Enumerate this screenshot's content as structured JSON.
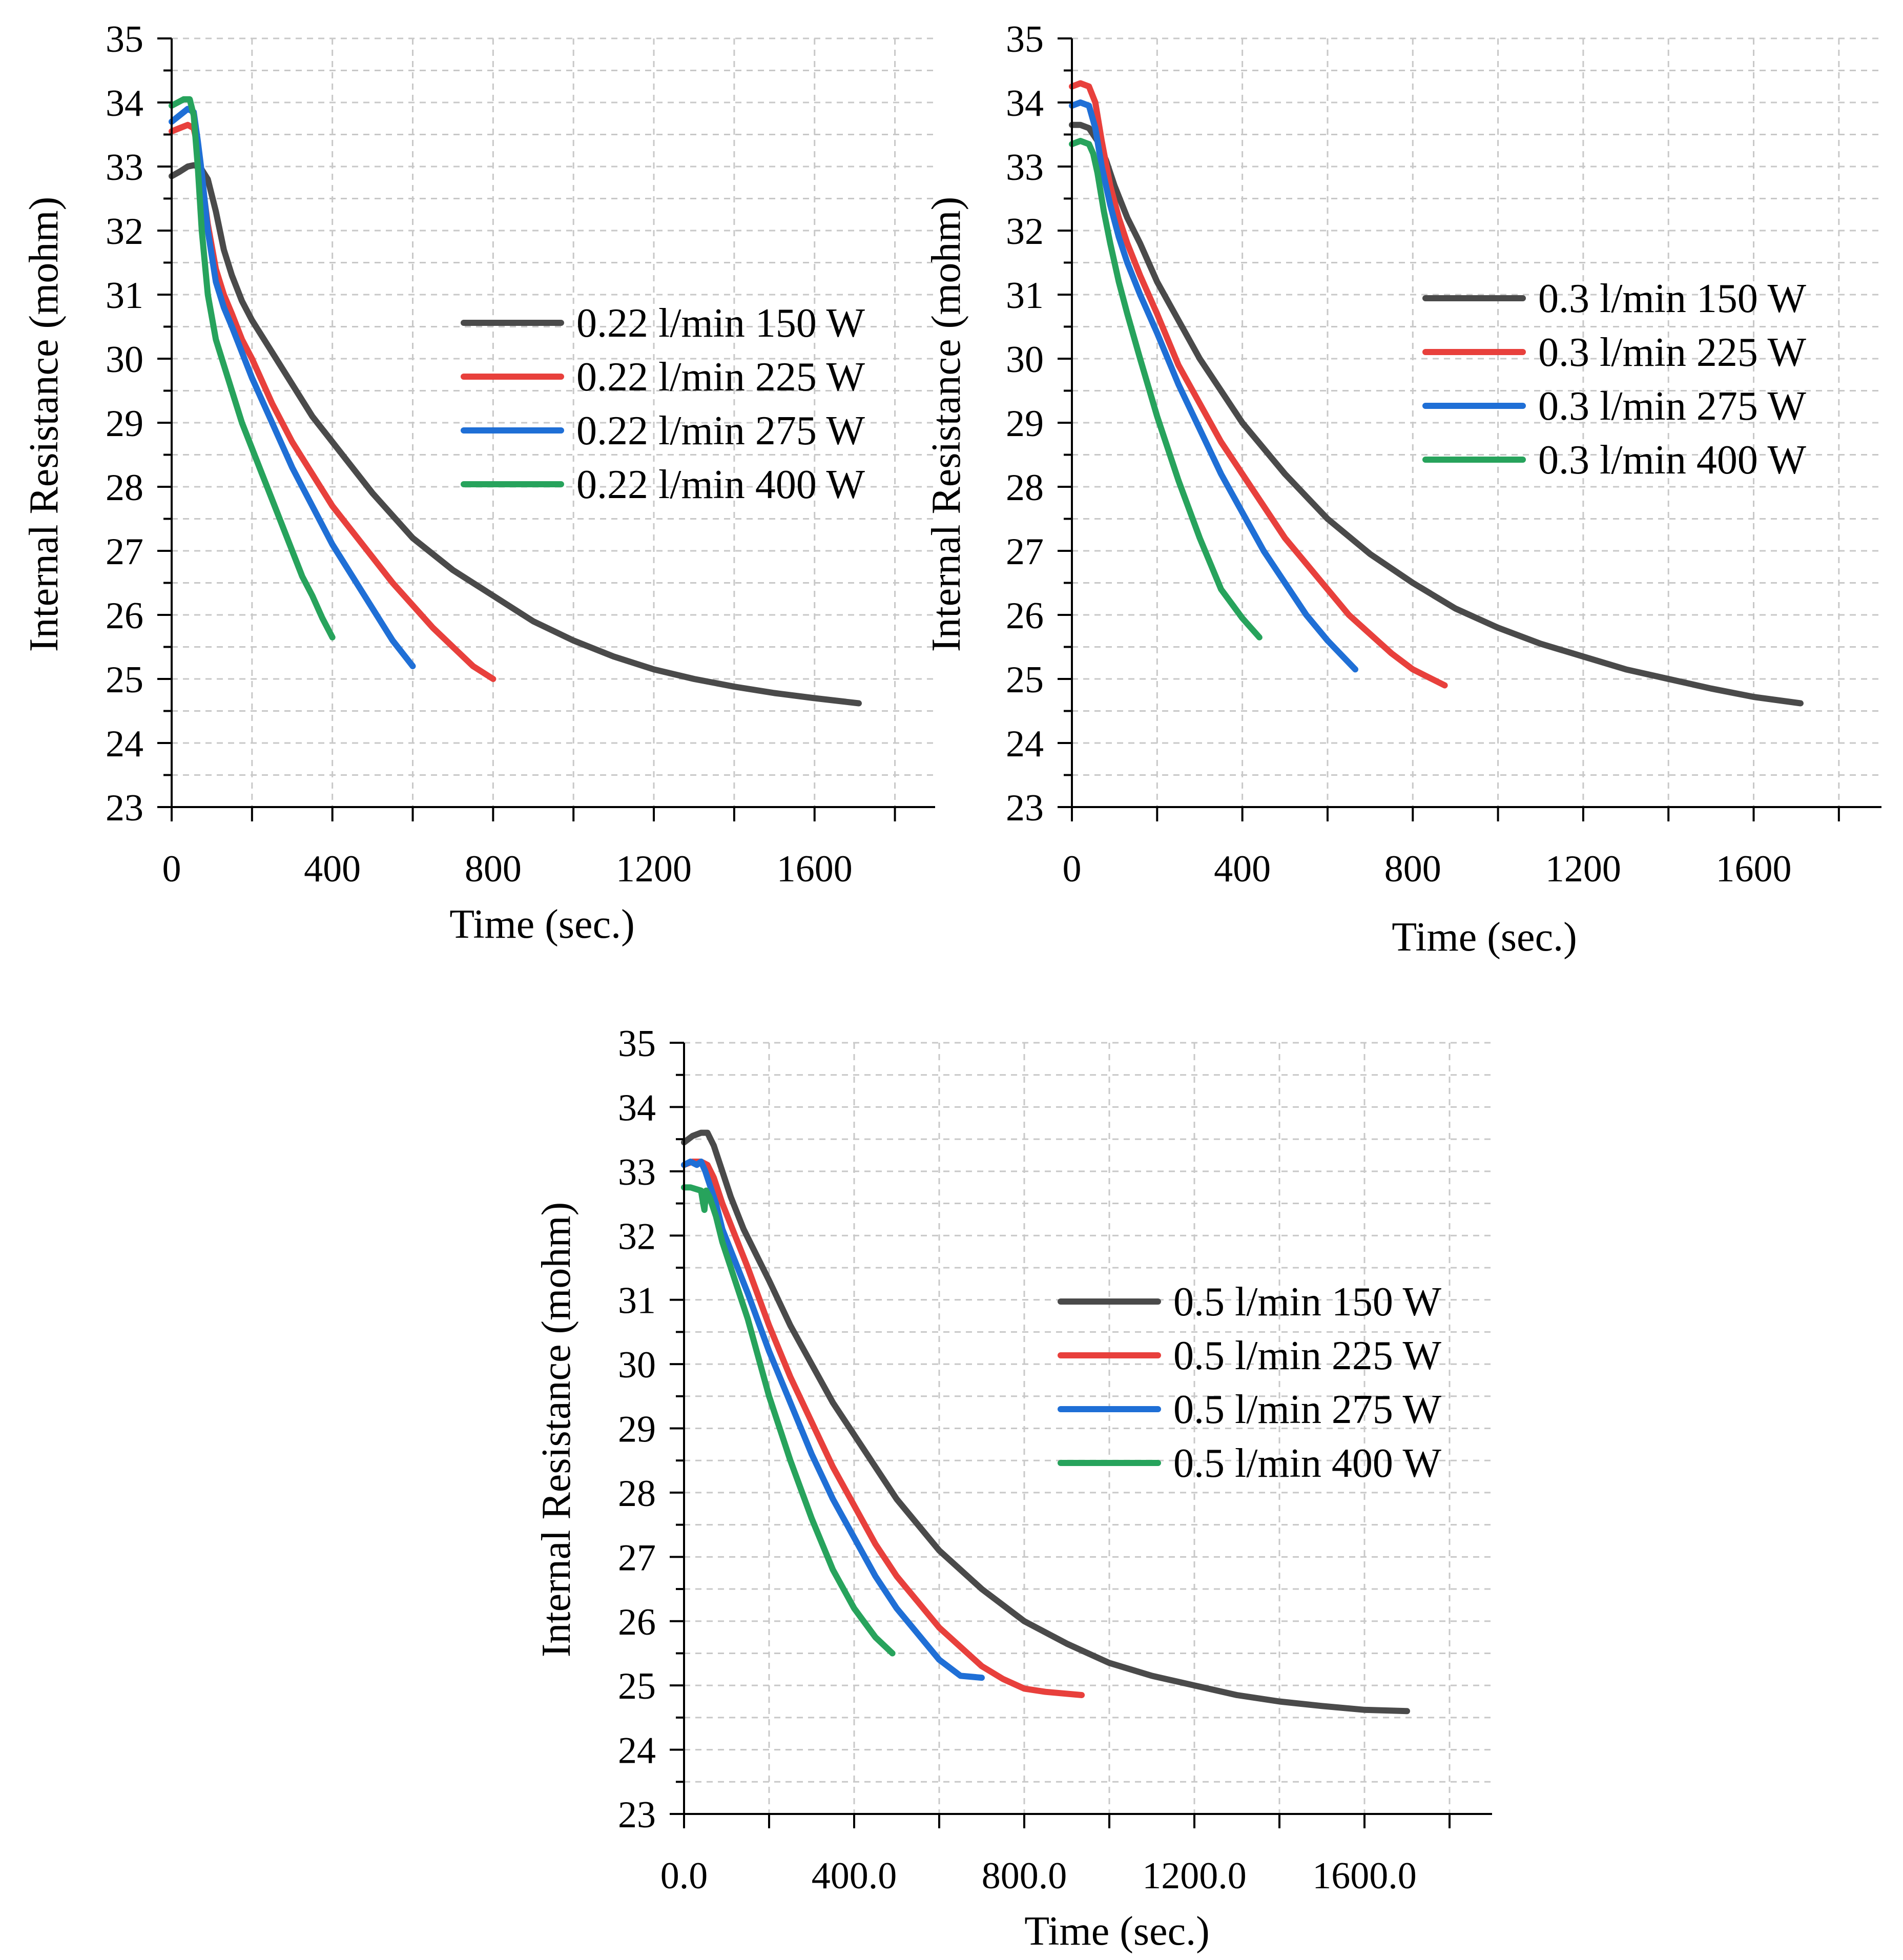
{
  "colors": {
    "150W": "#4a4a4a",
    "225W": "#e8403c",
    "275W": "#1f6fd6",
    "400W": "#27a35c"
  },
  "chart_data": [
    {
      "type": "line",
      "xlabel": "Time (sec.)",
      "ylabel": "Internal Resistance (mohm)",
      "xlim": [
        0,
        1900
      ],
      "ylim": [
        23,
        35
      ],
      "xticks": [
        "0",
        "400",
        "800",
        "1200",
        "1600"
      ],
      "yticks": [
        "23",
        "24",
        "25",
        "26",
        "27",
        "28",
        "29",
        "30",
        "31",
        "32",
        "33",
        "34",
        "35"
      ],
      "grid": true,
      "legend": "right-middle",
      "series": [
        {
          "name": "0.22 l/min 150 W",
          "color_key": "150W",
          "x": [
            0,
            20,
            40,
            55,
            70,
            90,
            110,
            130,
            150,
            175,
            200,
            250,
            300,
            350,
            400,
            500,
            600,
            700,
            800,
            900,
            1000,
            1100,
            1200,
            1300,
            1400,
            1500,
            1600,
            1710
          ],
          "y": [
            32.85,
            32.92,
            33.0,
            33.02,
            33.0,
            32.8,
            32.3,
            31.7,
            31.3,
            30.9,
            30.6,
            30.1,
            29.6,
            29.1,
            28.7,
            27.9,
            27.2,
            26.7,
            26.3,
            25.9,
            25.6,
            25.35,
            25.15,
            25.0,
            24.88,
            24.78,
            24.7,
            24.62
          ]
        },
        {
          "name": "0.22 l/min 225 W",
          "color_key": "225W",
          "x": [
            0,
            20,
            40,
            55,
            65,
            75,
            90,
            110,
            130,
            150,
            175,
            200,
            250,
            300,
            350,
            400,
            450,
            500,
            550,
            600,
            650,
            700,
            750,
            800
          ],
          "y": [
            33.55,
            33.6,
            33.65,
            33.6,
            33.3,
            32.8,
            32.1,
            31.4,
            31.0,
            30.7,
            30.3,
            30.0,
            29.3,
            28.7,
            28.2,
            27.7,
            27.3,
            26.9,
            26.5,
            26.15,
            25.8,
            25.5,
            25.2,
            25.0
          ]
        },
        {
          "name": "0.22 l/min 275 W",
          "color_key": "275W",
          "x": [
            0,
            20,
            40,
            55,
            65,
            75,
            90,
            110,
            130,
            150,
            175,
            200,
            250,
            300,
            350,
            400,
            450,
            500,
            550,
            600
          ],
          "y": [
            33.7,
            33.8,
            33.9,
            33.85,
            33.4,
            32.9,
            32.0,
            31.2,
            30.8,
            30.5,
            30.1,
            29.7,
            29.0,
            28.3,
            27.7,
            27.1,
            26.6,
            26.1,
            25.6,
            25.2
          ]
        },
        {
          "name": "0.22 l/min 400 W",
          "color_key": "400W",
          "x": [
            0,
            15,
            30,
            45,
            55,
            65,
            75,
            90,
            110,
            130,
            150,
            175,
            200,
            225,
            250,
            275,
            300,
            325,
            350,
            375,
            400
          ],
          "y": [
            33.95,
            34.0,
            34.05,
            34.05,
            33.8,
            33.0,
            32.0,
            31.0,
            30.3,
            29.9,
            29.5,
            29.0,
            28.6,
            28.2,
            27.8,
            27.4,
            27.0,
            26.6,
            26.3,
            25.95,
            25.65
          ]
        }
      ]
    },
    {
      "type": "line",
      "xlabel": "Time (sec.)",
      "ylabel": "Internal Resistance (mohm)",
      "xlim": [
        0,
        1900
      ],
      "ylim": [
        23,
        35
      ],
      "xticks": [
        "0",
        "400",
        "800",
        "1200",
        "1600"
      ],
      "yticks": [
        "23",
        "24",
        "25",
        "26",
        "27",
        "28",
        "29",
        "30",
        "31",
        "32",
        "33",
        "34",
        "35"
      ],
      "grid": true,
      "legend": "right-middle",
      "series": [
        {
          "name": "0.3 l/min 150 W",
          "color_key": "150W",
          "x": [
            0,
            20,
            40,
            60,
            80,
            100,
            130,
            160,
            200,
            250,
            300,
            350,
            400,
            500,
            600,
            700,
            800,
            900,
            1000,
            1100,
            1200,
            1300,
            1400,
            1500,
            1600,
            1710
          ],
          "y": [
            33.65,
            33.65,
            33.6,
            33.4,
            33.1,
            32.7,
            32.2,
            31.8,
            31.2,
            30.6,
            30.0,
            29.5,
            29.0,
            28.2,
            27.5,
            26.95,
            26.5,
            26.1,
            25.8,
            25.55,
            25.35,
            25.15,
            25.0,
            24.85,
            24.72,
            24.62
          ]
        },
        {
          "name": "0.3 l/min 225 W",
          "color_key": "225W",
          "x": [
            0,
            20,
            40,
            55,
            70,
            90,
            110,
            130,
            160,
            200,
            250,
            300,
            350,
            400,
            450,
            500,
            550,
            600,
            650,
            700,
            750,
            800,
            875
          ],
          "y": [
            34.25,
            34.3,
            34.25,
            34.0,
            33.4,
            32.7,
            32.2,
            31.8,
            31.3,
            30.7,
            29.9,
            29.3,
            28.7,
            28.2,
            27.7,
            27.2,
            26.8,
            26.4,
            26.0,
            25.7,
            25.4,
            25.15,
            24.9
          ]
        },
        {
          "name": "0.3 l/min 275 W",
          "color_key": "275W",
          "x": [
            0,
            20,
            40,
            55,
            70,
            90,
            110,
            130,
            160,
            200,
            250,
            300,
            350,
            400,
            450,
            500,
            550,
            600,
            665
          ],
          "y": [
            33.95,
            34.0,
            33.95,
            33.6,
            33.0,
            32.4,
            31.9,
            31.5,
            31.0,
            30.4,
            29.6,
            28.9,
            28.2,
            27.6,
            27.0,
            26.5,
            26.0,
            25.6,
            25.15
          ]
        },
        {
          "name": "0.3 l/min 400 W",
          "color_key": "400W",
          "x": [
            0,
            20,
            40,
            50,
            60,
            75,
            90,
            110,
            130,
            160,
            200,
            250,
            300,
            350,
            400,
            440
          ],
          "y": [
            33.35,
            33.4,
            33.35,
            33.2,
            32.9,
            32.3,
            31.8,
            31.2,
            30.7,
            30.0,
            29.1,
            28.1,
            27.2,
            26.4,
            25.95,
            25.65
          ]
        }
      ]
    },
    {
      "type": "line",
      "xlabel": "Time (sec.)",
      "ylabel": "Internal Resistance (mohm)",
      "xlim": [
        0,
        1900
      ],
      "ylim": [
        23,
        35
      ],
      "xticks": [
        "0.0",
        "400.0",
        "800.0",
        "1200.0",
        "1600.0"
      ],
      "yticks": [
        "23",
        "24",
        "25",
        "26",
        "27",
        "28",
        "29",
        "30",
        "31",
        "32",
        "33",
        "34",
        "35"
      ],
      "grid": true,
      "legend": "right-middle",
      "series": [
        {
          "name": "0.5 l/min 150 W",
          "color_key": "150W",
          "x": [
            0,
            20,
            40,
            55,
            70,
            90,
            110,
            140,
            170,
            200,
            250,
            300,
            350,
            400,
            450,
            500,
            600,
            700,
            800,
            900,
            1000,
            1100,
            1200,
            1300,
            1400,
            1500,
            1600,
            1700
          ],
          "y": [
            33.45,
            33.55,
            33.6,
            33.6,
            33.4,
            33.0,
            32.6,
            32.1,
            31.7,
            31.3,
            30.6,
            30.0,
            29.4,
            28.9,
            28.4,
            27.9,
            27.1,
            26.5,
            26.0,
            25.65,
            25.35,
            25.15,
            25.0,
            24.85,
            24.75,
            24.68,
            24.62,
            24.6
          ]
        },
        {
          "name": "0.5 l/min 225 W",
          "color_key": "225W",
          "x": [
            0,
            20,
            40,
            55,
            70,
            90,
            120,
            150,
            200,
            250,
            300,
            350,
            400,
            450,
            500,
            550,
            600,
            650,
            700,
            750,
            800,
            850,
            935
          ],
          "y": [
            33.1,
            33.15,
            33.15,
            33.1,
            32.9,
            32.5,
            32.0,
            31.5,
            30.6,
            29.8,
            29.1,
            28.4,
            27.8,
            27.2,
            26.7,
            26.3,
            25.9,
            25.6,
            25.3,
            25.1,
            24.95,
            24.9,
            24.85
          ]
        },
        {
          "name": "0.5 l/min 275 W",
          "color_key": "275W",
          "x": [
            0,
            15,
            30,
            40,
            50,
            60,
            75,
            90,
            120,
            150,
            200,
            250,
            300,
            350,
            400,
            450,
            500,
            550,
            600,
            650,
            700
          ],
          "y": [
            33.1,
            33.15,
            33.1,
            33.15,
            33.0,
            32.8,
            32.5,
            32.1,
            31.6,
            31.1,
            30.2,
            29.4,
            28.6,
            27.9,
            27.3,
            26.7,
            26.2,
            25.8,
            25.4,
            25.15,
            25.12
          ]
        },
        {
          "name": "0.5 l/min 400 W",
          "color_key": "400W",
          "x": [
            0,
            15,
            30,
            40,
            45,
            48,
            52,
            60,
            75,
            90,
            120,
            150,
            200,
            250,
            300,
            350,
            400,
            450,
            490
          ],
          "y": [
            32.75,
            32.75,
            32.72,
            32.7,
            32.5,
            32.4,
            32.7,
            32.6,
            32.3,
            31.9,
            31.3,
            30.7,
            29.5,
            28.5,
            27.6,
            26.8,
            26.2,
            25.75,
            25.5
          ]
        }
      ]
    }
  ]
}
